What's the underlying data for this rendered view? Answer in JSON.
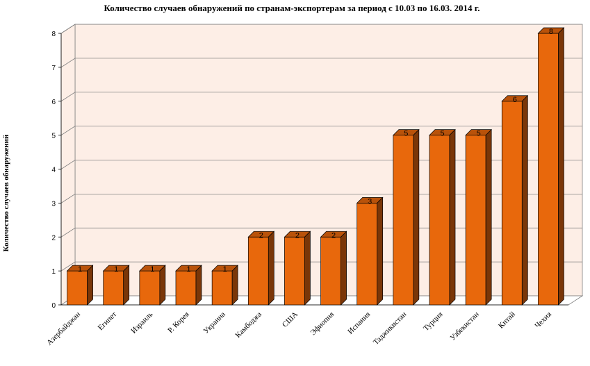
{
  "chart_data": {
    "type": "bar",
    "title": "Количество случаев обнаружений по странам-экспортерам за период с 10.03 по 16.03. 2014 г.",
    "xlabel": "",
    "ylabel": "Количество случаев обнаружений",
    "ylim": [
      0,
      8
    ],
    "yticks": [
      0,
      1,
      2,
      3,
      4,
      5,
      6,
      7,
      8
    ],
    "categories": [
      "Азербайджан",
      "Египет",
      "Израиль",
      "Р. Корея",
      "Украина",
      "Камбоджа",
      "США",
      "Эфиопия",
      "Испания",
      "Таджикистан",
      "Турция",
      "Узбекистан",
      "Китай",
      "Чехия"
    ],
    "values": [
      1,
      1,
      1,
      1,
      1,
      2,
      2,
      2,
      3,
      5,
      5,
      5,
      6,
      8
    ],
    "data_labels": true,
    "grid": true,
    "legend": "none",
    "colors": {
      "bar_front": "#e8680c",
      "bar_top": "#b9520a",
      "bar_side": "#7a3608",
      "wall": "#fdeee6",
      "gridline": "#808080"
    }
  }
}
